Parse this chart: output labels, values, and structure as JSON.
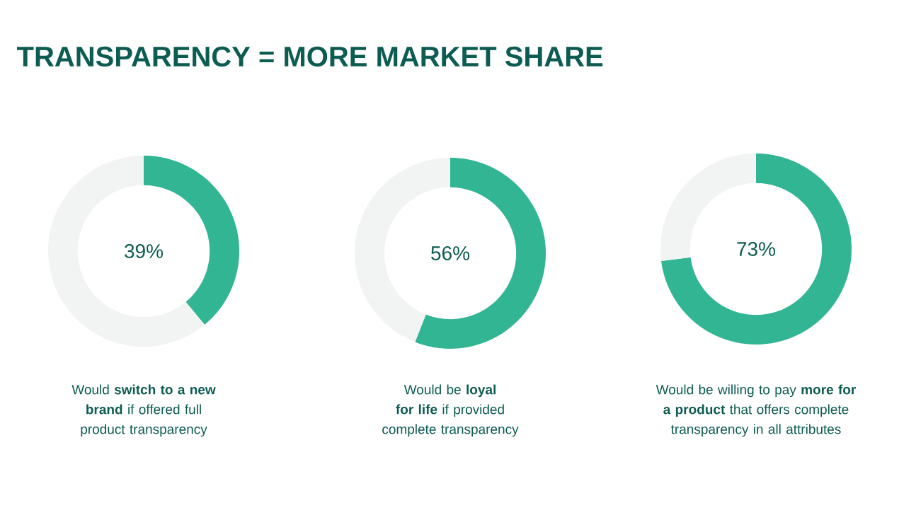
{
  "chart_data": [
    {
      "type": "donut",
      "title": "TRANSPARENCY = MORE MARKET SHARE",
      "categories": [
        null,
        null
      ],
      "values": [
        39,
        61
      ],
      "colors": [
        "#32b592",
        "#f1f4f2"
      ],
      "value_labels": [
        "39%",
        null
      ],
      "annotations": [
        "Would **switch to a new brand** if offered full product transparency"
      ]
    },
    {
      "type": "donut",
      "categories": [
        null,
        null
      ],
      "values": [
        56,
        44
      ],
      "colors": [
        "#32b592",
        "#f1f4f2"
      ],
      "value_labels": [
        "56%",
        null
      ],
      "annotations": [
        "Would be **loyal for life** if provided complete transparency"
      ]
    },
    {
      "type": "donut",
      "categories": [
        null,
        null
      ],
      "values": [
        73,
        27
      ],
      "colors": [
        "#32b592",
        "#f1f4f2"
      ],
      "value_labels": [
        "73%",
        null
      ],
      "annotations": [
        "Would be willing to pay **more for a product** that offers complete transparency in all attributes"
      ]
    }
  ]
}
